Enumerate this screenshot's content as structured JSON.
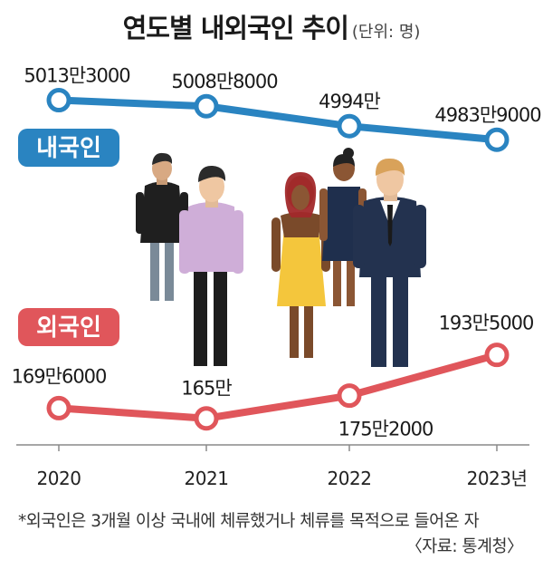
{
  "title": "연도별 내외국인 추이",
  "unit": "(단위: 명)",
  "footnote": "*외국인은 3개월 이상 국내에 체류했거나 체류를 목적으로 들어온 자",
  "source": "〈자료: 통계청〉",
  "colors": {
    "native": "#2a84c1",
    "foreign": "#e0565b",
    "axis": "#8a8a8a"
  },
  "chart_data": {
    "type": "line",
    "categories": [
      "2020",
      "2021",
      "2022",
      "2023년"
    ],
    "series": [
      {
        "name": "내국인",
        "values": [
          50133000,
          50088000,
          49940000,
          49839000
        ],
        "labels": [
          "5013만3000",
          "5008만8000",
          "4994만",
          "4983만9000"
        ]
      },
      {
        "name": "외국인",
        "values": [
          1696000,
          1650000,
          1752000,
          1935000
        ],
        "labels": [
          "169만6000",
          "165만",
          "175만2000",
          "193만5000"
        ]
      }
    ]
  }
}
